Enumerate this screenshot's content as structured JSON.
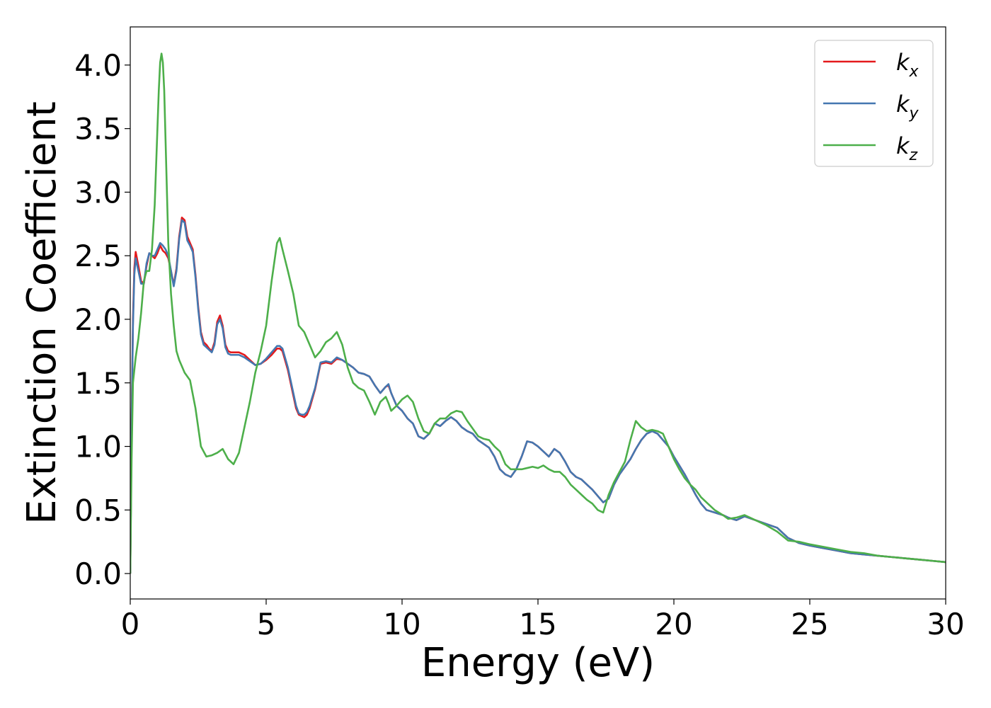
{
  "chart_data": {
    "type": "line",
    "title": "",
    "xlabel": "Energy (eV)",
    "ylabel": "Extinction Coefficient",
    "xlim": [
      0,
      30
    ],
    "ylim": [
      -0.2,
      4.3
    ],
    "xticks": [
      0,
      5,
      10,
      15,
      20,
      25,
      30
    ],
    "yticks": [
      0.0,
      0.5,
      1.0,
      1.5,
      2.0,
      2.5,
      3.0,
      3.5,
      4.0
    ],
    "xtick_labels": [
      "0",
      "5",
      "10",
      "15",
      "20",
      "25",
      "30"
    ],
    "ytick_labels": [
      "0.0",
      "0.5",
      "1.0",
      "1.5",
      "2.0",
      "2.5",
      "3.0",
      "3.5",
      "4.0"
    ],
    "grid": false,
    "legend_position": "top-right",
    "series": [
      {
        "name": "k_x",
        "base": "k",
        "sub": "x",
        "color": "#e41a1c",
        "x": [
          0,
          0.05,
          0.1,
          0.15,
          0.2,
          0.3,
          0.4,
          0.5,
          0.6,
          0.7,
          0.8,
          0.9,
          1.0,
          1.1,
          1.2,
          1.3,
          1.4,
          1.5,
          1.6,
          1.7,
          1.8,
          1.9,
          2.0,
          2.1,
          2.2,
          2.3,
          2.4,
          2.5,
          2.6,
          2.7,
          2.8,
          2.9,
          3.0,
          3.1,
          3.2,
          3.3,
          3.4,
          3.5,
          3.6,
          3.7,
          3.8,
          4.0,
          4.2,
          4.4,
          4.6,
          4.8,
          5.0,
          5.2,
          5.4,
          5.5,
          5.6,
          5.8,
          6.0,
          6.1,
          6.2,
          6.3,
          6.4,
          6.5,
          6.6,
          6.8,
          7.0,
          7.2,
          7.4,
          7.6,
          7.8,
          8.0,
          8.2,
          8.4,
          8.6,
          8.8,
          9.0,
          9.2,
          9.4,
          9.5,
          9.6,
          9.8,
          10.0,
          10.2,
          10.4,
          10.6,
          10.8,
          11.0,
          11.2,
          11.4,
          11.6,
          11.8,
          12.0,
          12.2,
          12.4,
          12.6,
          12.8,
          13.0,
          13.2,
          13.4,
          13.6,
          13.8,
          14.0,
          14.2,
          14.4,
          14.6,
          14.8,
          15.0,
          15.2,
          15.4,
          15.6,
          15.8,
          16.0,
          16.2,
          16.4,
          16.6,
          16.8,
          17.0,
          17.2,
          17.4,
          17.6,
          17.8,
          18.0,
          18.2,
          18.4,
          18.6,
          18.8,
          19.0,
          19.2,
          19.4,
          19.6,
          19.8,
          20.0,
          20.2,
          20.4,
          20.6,
          20.8,
          21.0,
          21.2,
          21.5,
          21.8,
          22.0,
          22.3,
          22.6,
          23.0,
          23.4,
          23.8,
          24.2,
          24.6,
          25.0,
          25.5,
          26.0,
          26.5,
          27.0,
          27.5,
          28.0,
          28.5,
          29.0,
          29.5,
          30.0
        ],
        "y": [
          0.0,
          1.2,
          2.0,
          2.4,
          2.53,
          2.42,
          2.3,
          2.28,
          2.42,
          2.52,
          2.5,
          2.48,
          2.52,
          2.58,
          2.54,
          2.52,
          2.48,
          2.38,
          2.27,
          2.4,
          2.65,
          2.8,
          2.78,
          2.65,
          2.6,
          2.55,
          2.35,
          2.1,
          1.9,
          1.82,
          1.8,
          1.77,
          1.75,
          1.82,
          1.98,
          2.03,
          1.95,
          1.8,
          1.75,
          1.74,
          1.74,
          1.74,
          1.72,
          1.68,
          1.64,
          1.65,
          1.68,
          1.72,
          1.77,
          1.77,
          1.75,
          1.6,
          1.4,
          1.3,
          1.25,
          1.24,
          1.23,
          1.25,
          1.3,
          1.45,
          1.65,
          1.66,
          1.65,
          1.69,
          1.68,
          1.65,
          1.62,
          1.58,
          1.57,
          1.55,
          1.48,
          1.42,
          1.47,
          1.48,
          1.42,
          1.32,
          1.28,
          1.22,
          1.18,
          1.08,
          1.06,
          1.1,
          1.18,
          1.16,
          1.2,
          1.23,
          1.2,
          1.15,
          1.12,
          1.1,
          1.05,
          1.02,
          0.99,
          0.92,
          0.82,
          0.78,
          0.76,
          0.82,
          0.92,
          1.04,
          1.03,
          1.0,
          0.96,
          0.92,
          0.98,
          0.95,
          0.88,
          0.8,
          0.76,
          0.74,
          0.7,
          0.66,
          0.61,
          0.56,
          0.59,
          0.7,
          0.78,
          0.84,
          0.9,
          0.98,
          1.05,
          1.1,
          1.12,
          1.1,
          1.05,
          1.0,
          0.92,
          0.85,
          0.78,
          0.7,
          0.62,
          0.55,
          0.5,
          0.48,
          0.46,
          0.44,
          0.42,
          0.45,
          0.42,
          0.39,
          0.36,
          0.28,
          0.24,
          0.22,
          0.2,
          0.18,
          0.16,
          0.15,
          0.14,
          0.13,
          0.12,
          0.11,
          0.1,
          0.09
        ]
      },
      {
        "name": "k_y",
        "base": "k",
        "sub": "y",
        "color": "#4477b0",
        "x": [
          0,
          0.05,
          0.1,
          0.15,
          0.2,
          0.3,
          0.4,
          0.5,
          0.6,
          0.7,
          0.8,
          0.9,
          1.0,
          1.1,
          1.2,
          1.3,
          1.4,
          1.5,
          1.6,
          1.7,
          1.8,
          1.9,
          2.0,
          2.1,
          2.2,
          2.3,
          2.4,
          2.5,
          2.6,
          2.7,
          2.8,
          2.9,
          3.0,
          3.1,
          3.2,
          3.3,
          3.4,
          3.5,
          3.6,
          3.7,
          3.8,
          4.0,
          4.2,
          4.4,
          4.6,
          4.8,
          5.0,
          5.2,
          5.4,
          5.5,
          5.6,
          5.8,
          6.0,
          6.1,
          6.2,
          6.3,
          6.4,
          6.5,
          6.6,
          6.8,
          7.0,
          7.2,
          7.4,
          7.6,
          7.8,
          8.0,
          8.2,
          8.4,
          8.6,
          8.8,
          9.0,
          9.2,
          9.4,
          9.5,
          9.6,
          9.8,
          10.0,
          10.2,
          10.4,
          10.6,
          10.8,
          11.0,
          11.2,
          11.4,
          11.6,
          11.8,
          12.0,
          12.2,
          12.4,
          12.6,
          12.8,
          13.0,
          13.2,
          13.4,
          13.6,
          13.8,
          14.0,
          14.2,
          14.4,
          14.6,
          14.8,
          15.0,
          15.2,
          15.4,
          15.6,
          15.8,
          16.0,
          16.2,
          16.4,
          16.6,
          16.8,
          17.0,
          17.2,
          17.4,
          17.6,
          17.8,
          18.0,
          18.2,
          18.4,
          18.6,
          18.8,
          19.0,
          19.2,
          19.4,
          19.6,
          19.8,
          20.0,
          20.2,
          20.4,
          20.6,
          20.8,
          21.0,
          21.2,
          21.5,
          21.8,
          22.0,
          22.3,
          22.6,
          23.0,
          23.4,
          23.8,
          24.2,
          24.6,
          25.0,
          25.5,
          26.0,
          26.5,
          27.0,
          27.5,
          28.0,
          28.5,
          29.0,
          29.5,
          30.0
        ],
        "y": [
          0.0,
          1.15,
          1.95,
          2.35,
          2.48,
          2.38,
          2.28,
          2.28,
          2.44,
          2.52,
          2.5,
          2.5,
          2.55,
          2.6,
          2.58,
          2.55,
          2.5,
          2.38,
          2.26,
          2.38,
          2.63,
          2.78,
          2.76,
          2.62,
          2.58,
          2.53,
          2.33,
          2.08,
          1.88,
          1.8,
          1.78,
          1.76,
          1.74,
          1.8,
          1.96,
          2.0,
          1.93,
          1.78,
          1.73,
          1.72,
          1.72,
          1.72,
          1.7,
          1.67,
          1.64,
          1.65,
          1.69,
          1.74,
          1.79,
          1.79,
          1.77,
          1.62,
          1.42,
          1.32,
          1.26,
          1.25,
          1.25,
          1.27,
          1.32,
          1.46,
          1.66,
          1.67,
          1.66,
          1.7,
          1.68,
          1.65,
          1.62,
          1.58,
          1.57,
          1.55,
          1.48,
          1.42,
          1.47,
          1.49,
          1.42,
          1.32,
          1.28,
          1.22,
          1.18,
          1.08,
          1.06,
          1.1,
          1.18,
          1.16,
          1.2,
          1.23,
          1.2,
          1.15,
          1.12,
          1.1,
          1.05,
          1.02,
          0.99,
          0.92,
          0.82,
          0.78,
          0.76,
          0.82,
          0.92,
          1.04,
          1.03,
          1.0,
          0.96,
          0.92,
          0.98,
          0.95,
          0.88,
          0.8,
          0.76,
          0.74,
          0.7,
          0.66,
          0.61,
          0.56,
          0.59,
          0.7,
          0.78,
          0.84,
          0.9,
          0.98,
          1.05,
          1.1,
          1.12,
          1.1,
          1.05,
          1.0,
          0.92,
          0.85,
          0.78,
          0.7,
          0.62,
          0.55,
          0.5,
          0.48,
          0.46,
          0.44,
          0.42,
          0.45,
          0.42,
          0.39,
          0.36,
          0.28,
          0.24,
          0.22,
          0.2,
          0.18,
          0.16,
          0.15,
          0.14,
          0.13,
          0.12,
          0.11,
          0.1,
          0.09
        ]
      },
      {
        "name": "k_z",
        "base": "k",
        "sub": "z",
        "color": "#4daf4a",
        "x": [
          0,
          0.05,
          0.1,
          0.2,
          0.3,
          0.4,
          0.5,
          0.6,
          0.7,
          0.8,
          0.9,
          1.0,
          1.05,
          1.1,
          1.15,
          1.2,
          1.25,
          1.3,
          1.35,
          1.4,
          1.5,
          1.6,
          1.7,
          1.8,
          2.0,
          2.2,
          2.4,
          2.6,
          2.8,
          3.0,
          3.2,
          3.4,
          3.6,
          3.8,
          4.0,
          4.2,
          4.4,
          4.6,
          4.8,
          5.0,
          5.2,
          5.4,
          5.5,
          5.6,
          5.8,
          6.0,
          6.2,
          6.4,
          6.6,
          6.8,
          7.0,
          7.2,
          7.4,
          7.6,
          7.8,
          8.0,
          8.2,
          8.4,
          8.6,
          8.8,
          9.0,
          9.2,
          9.4,
          9.5,
          9.6,
          9.8,
          10.0,
          10.2,
          10.4,
          10.6,
          10.8,
          11.0,
          11.2,
          11.4,
          11.6,
          11.8,
          12.0,
          12.2,
          12.4,
          12.6,
          12.8,
          13.0,
          13.2,
          13.4,
          13.6,
          13.8,
          14.0,
          14.2,
          14.4,
          14.6,
          14.8,
          15.0,
          15.2,
          15.4,
          15.6,
          15.8,
          16.0,
          16.2,
          16.4,
          16.6,
          16.8,
          17.0,
          17.2,
          17.4,
          17.6,
          17.8,
          18.0,
          18.2,
          18.4,
          18.6,
          18.8,
          19.0,
          19.2,
          19.4,
          19.6,
          19.8,
          20.0,
          20.2,
          20.4,
          20.6,
          20.8,
          21.0,
          21.2,
          21.5,
          21.8,
          22.0,
          22.3,
          22.6,
          23.0,
          23.4,
          23.8,
          24.2,
          24.6,
          25.0,
          25.5,
          26.0,
          26.5,
          27.0,
          27.5,
          28.0,
          28.5,
          29.0,
          29.5,
          30.0
        ],
        "y": [
          0.0,
          0.9,
          1.5,
          1.7,
          1.85,
          2.05,
          2.3,
          2.38,
          2.38,
          2.55,
          2.9,
          3.5,
          3.8,
          4.02,
          4.09,
          4.02,
          3.8,
          3.4,
          3.0,
          2.6,
          2.2,
          1.95,
          1.75,
          1.68,
          1.58,
          1.52,
          1.3,
          1.0,
          0.92,
          0.93,
          0.95,
          0.98,
          0.9,
          0.86,
          0.95,
          1.15,
          1.35,
          1.58,
          1.75,
          1.95,
          2.3,
          2.6,
          2.64,
          2.55,
          2.38,
          2.2,
          1.95,
          1.9,
          1.8,
          1.7,
          1.75,
          1.82,
          1.85,
          1.9,
          1.8,
          1.62,
          1.5,
          1.46,
          1.44,
          1.35,
          1.25,
          1.35,
          1.39,
          1.34,
          1.28,
          1.32,
          1.37,
          1.4,
          1.35,
          1.22,
          1.12,
          1.1,
          1.18,
          1.22,
          1.22,
          1.26,
          1.28,
          1.27,
          1.2,
          1.14,
          1.08,
          1.06,
          1.05,
          1.0,
          0.96,
          0.86,
          0.82,
          0.82,
          0.82,
          0.83,
          0.84,
          0.83,
          0.85,
          0.82,
          0.8,
          0.8,
          0.76,
          0.7,
          0.66,
          0.62,
          0.58,
          0.55,
          0.5,
          0.48,
          0.62,
          0.72,
          0.8,
          0.88,
          1.05,
          1.2,
          1.15,
          1.12,
          1.13,
          1.12,
          1.1,
          1.0,
          0.9,
          0.82,
          0.75,
          0.7,
          0.66,
          0.6,
          0.56,
          0.5,
          0.46,
          0.43,
          0.44,
          0.46,
          0.42,
          0.38,
          0.33,
          0.26,
          0.25,
          0.23,
          0.21,
          0.19,
          0.17,
          0.16,
          0.14,
          0.13,
          0.12,
          0.11,
          0.1,
          0.09
        ]
      }
    ]
  }
}
